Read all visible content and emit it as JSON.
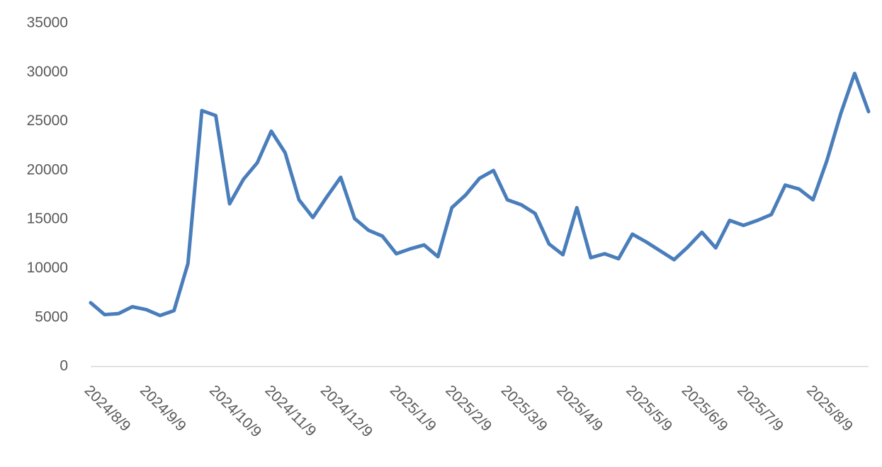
{
  "chart_data": {
    "type": "line",
    "categories": [
      "2024/8/9",
      null,
      null,
      null,
      "2024/9/9",
      null,
      null,
      null,
      null,
      "2024/10/9",
      null,
      null,
      null,
      "2024/11/9",
      null,
      null,
      null,
      "2024/12/9",
      null,
      null,
      null,
      null,
      "2025/1/9",
      null,
      null,
      null,
      "2025/2/9",
      null,
      null,
      null,
      "2025/3/9",
      null,
      null,
      null,
      "2025/4/9",
      null,
      null,
      null,
      null,
      "2025/5/9",
      null,
      null,
      null,
      "2025/6/9",
      null,
      null,
      null,
      "2025/7/9",
      null,
      null,
      null,
      null,
      "2025/8/9",
      null,
      null,
      null,
      null
    ],
    "series": [
      {
        "color": "#4a7ebb",
        "values": [
          6500,
          5300,
          5400,
          6100,
          5800,
          5200,
          5700,
          10500,
          26100,
          25600,
          16600,
          19100,
          20800,
          24000,
          21800,
          17000,
          15200,
          17300,
          19300,
          15100,
          13900,
          13300,
          11500,
          12000,
          12400,
          11200,
          16200,
          17500,
          19200,
          20000,
          17000,
          16500,
          15600,
          12500,
          11400,
          16200,
          11100,
          11500,
          11000,
          13500,
          12700,
          11800,
          10900,
          12200,
          13700,
          12100,
          14900,
          14400,
          14900,
          15500,
          18500,
          18100,
          17000,
          21000,
          25800,
          29900,
          26000
        ]
      }
    ],
    "ylim": [
      0,
      35000
    ],
    "yticks": [
      0,
      5000,
      10000,
      15000,
      20000,
      25000,
      30000,
      35000
    ],
    "grid": false
  }
}
